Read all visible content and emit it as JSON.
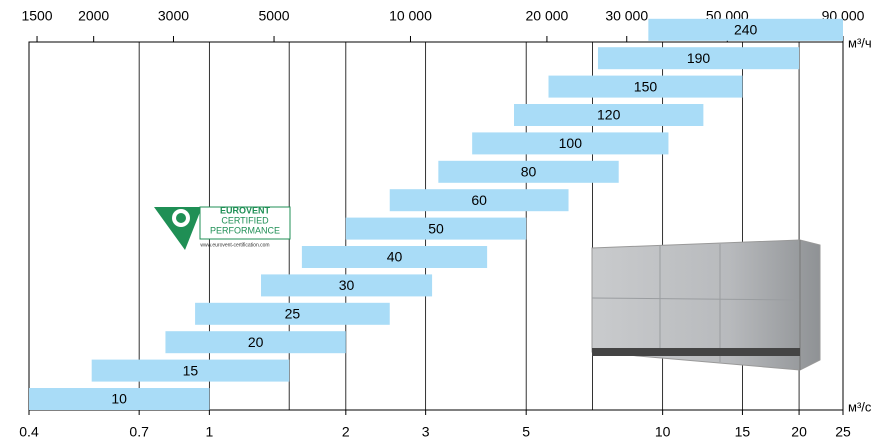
{
  "chart_data": {
    "type": "range_bar",
    "categories": [
      "10",
      "15",
      "20",
      "25",
      "30",
      "40",
      "50",
      "60",
      "80",
      "100",
      "120",
      "150",
      "190",
      "240"
    ],
    "start": [
      0.4,
      0.55,
      0.8,
      0.93,
      1.3,
      1.6,
      2.0,
      2.5,
      3.2,
      3.8,
      4.7,
      5.6,
      7.2,
      9.3
    ],
    "end": [
      1.0,
      1.5,
      2.0,
      2.5,
      3.1,
      4.1,
      5.0,
      6.2,
      8.0,
      10.3,
      12.3,
      15.0,
      20.0,
      25.0
    ],
    "color": "#a9dcf7",
    "log_x": true,
    "xlim": [
      0.4,
      25
    ],
    "xticks": [
      0.4,
      0.7,
      1,
      2,
      3,
      5,
      10,
      15,
      20,
      25
    ],
    "xgrid": [
      0.7,
      1,
      1.5,
      2,
      3,
      5,
      7,
      10,
      15,
      20
    ],
    "xlabel": "м³/с",
    "x2lim": [
      1440,
      90000
    ],
    "x2ticks": [
      1500,
      2000,
      3000,
      5000,
      {
        "value": 10000,
        "label": "10 000"
      },
      {
        "value": 20000,
        "label": "20 000"
      },
      {
        "value": 30000,
        "label": "30 000"
      },
      {
        "value": 50000,
        "label": "50 000"
      },
      {
        "value": 90000,
        "label": "90 000"
      }
    ],
    "x2label": "м³/ч",
    "logo": {
      "line1": "EUROVENT",
      "line2": "CERTIFIED",
      "line3": "PERFORMANCE",
      "url": "www.eurovent-certification.com"
    }
  }
}
